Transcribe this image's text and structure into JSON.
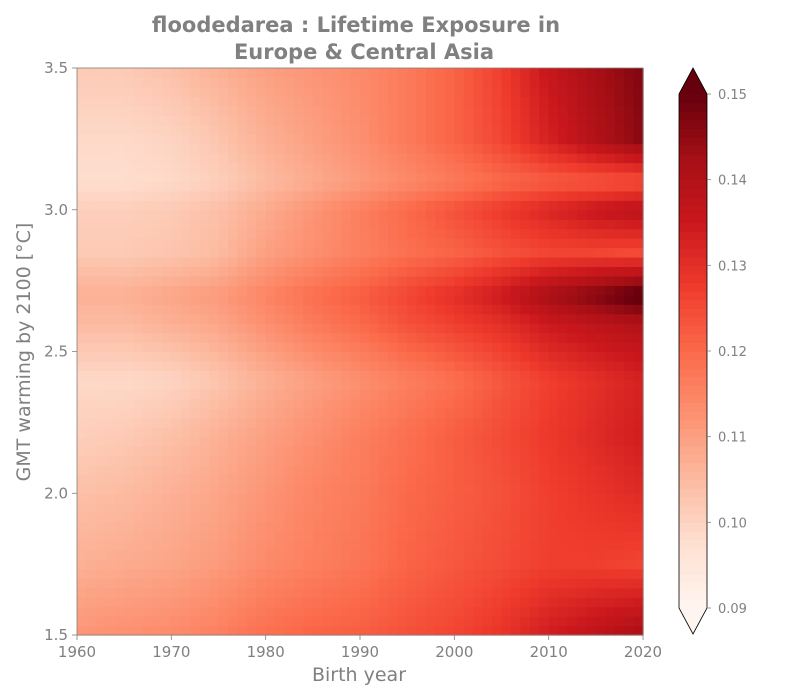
{
  "chart_data": {
    "type": "heatmap",
    "title_line1": "floodedarea : Lifetime Exposure in",
    "title_line2": "Europe & Central Asia",
    "xlabel": "Birth year",
    "ylabel": "GMT warming by 2100 [°C]",
    "xlim": [
      1960,
      2020
    ],
    "ylim": [
      1.5,
      3.5
    ],
    "xticks": [
      "1960",
      "1970",
      "1980",
      "1990",
      "2000",
      "2010",
      "2020"
    ],
    "yticks": [
      "1.5",
      "2.0",
      "2.5",
      "3.0",
      "3.5"
    ],
    "x": [
      1960,
      1965,
      1970,
      1975,
      1980,
      1985,
      1990,
      1995,
      2000,
      2005,
      2010,
      2015,
      2020
    ],
    "y": [
      1.5,
      1.75,
      2.0,
      2.2,
      2.4,
      2.6,
      2.7,
      2.85,
      3.0,
      3.1,
      3.25,
      3.5
    ],
    "z": [
      [
        0.112,
        0.113,
        0.114,
        0.116,
        0.119,
        0.121,
        0.122,
        0.124,
        0.126,
        0.129,
        0.134,
        0.138,
        0.142
      ],
      [
        0.107,
        0.108,
        0.109,
        0.111,
        0.114,
        0.116,
        0.118,
        0.121,
        0.123,
        0.125,
        0.127,
        0.127,
        0.126
      ],
      [
        0.104,
        0.105,
        0.107,
        0.109,
        0.112,
        0.115,
        0.117,
        0.12,
        0.122,
        0.124,
        0.127,
        0.129,
        0.131
      ],
      [
        0.101,
        0.102,
        0.104,
        0.107,
        0.11,
        0.113,
        0.116,
        0.119,
        0.122,
        0.125,
        0.128,
        0.131,
        0.134
      ],
      [
        0.099,
        0.099,
        0.1,
        0.103,
        0.107,
        0.11,
        0.113,
        0.116,
        0.119,
        0.123,
        0.127,
        0.13,
        0.133
      ],
      [
        0.105,
        0.105,
        0.107,
        0.109,
        0.113,
        0.117,
        0.12,
        0.124,
        0.127,
        0.13,
        0.135,
        0.138,
        0.14
      ],
      [
        0.107,
        0.107,
        0.109,
        0.111,
        0.115,
        0.119,
        0.122,
        0.126,
        0.13,
        0.135,
        0.142,
        0.147,
        0.153
      ],
      [
        0.102,
        0.102,
        0.103,
        0.105,
        0.11,
        0.113,
        0.116,
        0.119,
        0.121,
        0.124,
        0.126,
        0.126,
        0.125
      ],
      [
        0.101,
        0.101,
        0.102,
        0.104,
        0.108,
        0.112,
        0.116,
        0.12,
        0.124,
        0.128,
        0.132,
        0.136,
        0.139
      ],
      [
        0.098,
        0.098,
        0.099,
        0.101,
        0.105,
        0.108,
        0.111,
        0.114,
        0.117,
        0.12,
        0.122,
        0.123,
        0.124
      ],
      [
        0.099,
        0.099,
        0.1,
        0.103,
        0.107,
        0.11,
        0.113,
        0.117,
        0.121,
        0.126,
        0.133,
        0.14,
        0.146
      ],
      [
        0.102,
        0.102,
        0.104,
        0.107,
        0.11,
        0.112,
        0.114,
        0.117,
        0.121,
        0.127,
        0.136,
        0.142,
        0.147
      ]
    ],
    "colorbar": {
      "vmin": 0.09,
      "vmax": 0.15,
      "extend": "both",
      "ticks": [
        "0.09",
        "0.10",
        "0.11",
        "0.12",
        "0.13",
        "0.14",
        "0.15"
      ],
      "colormap": "Reds",
      "under_color": "#fff5f0",
      "over_color": "#67000d"
    },
    "grid": false,
    "legend": "none"
  }
}
